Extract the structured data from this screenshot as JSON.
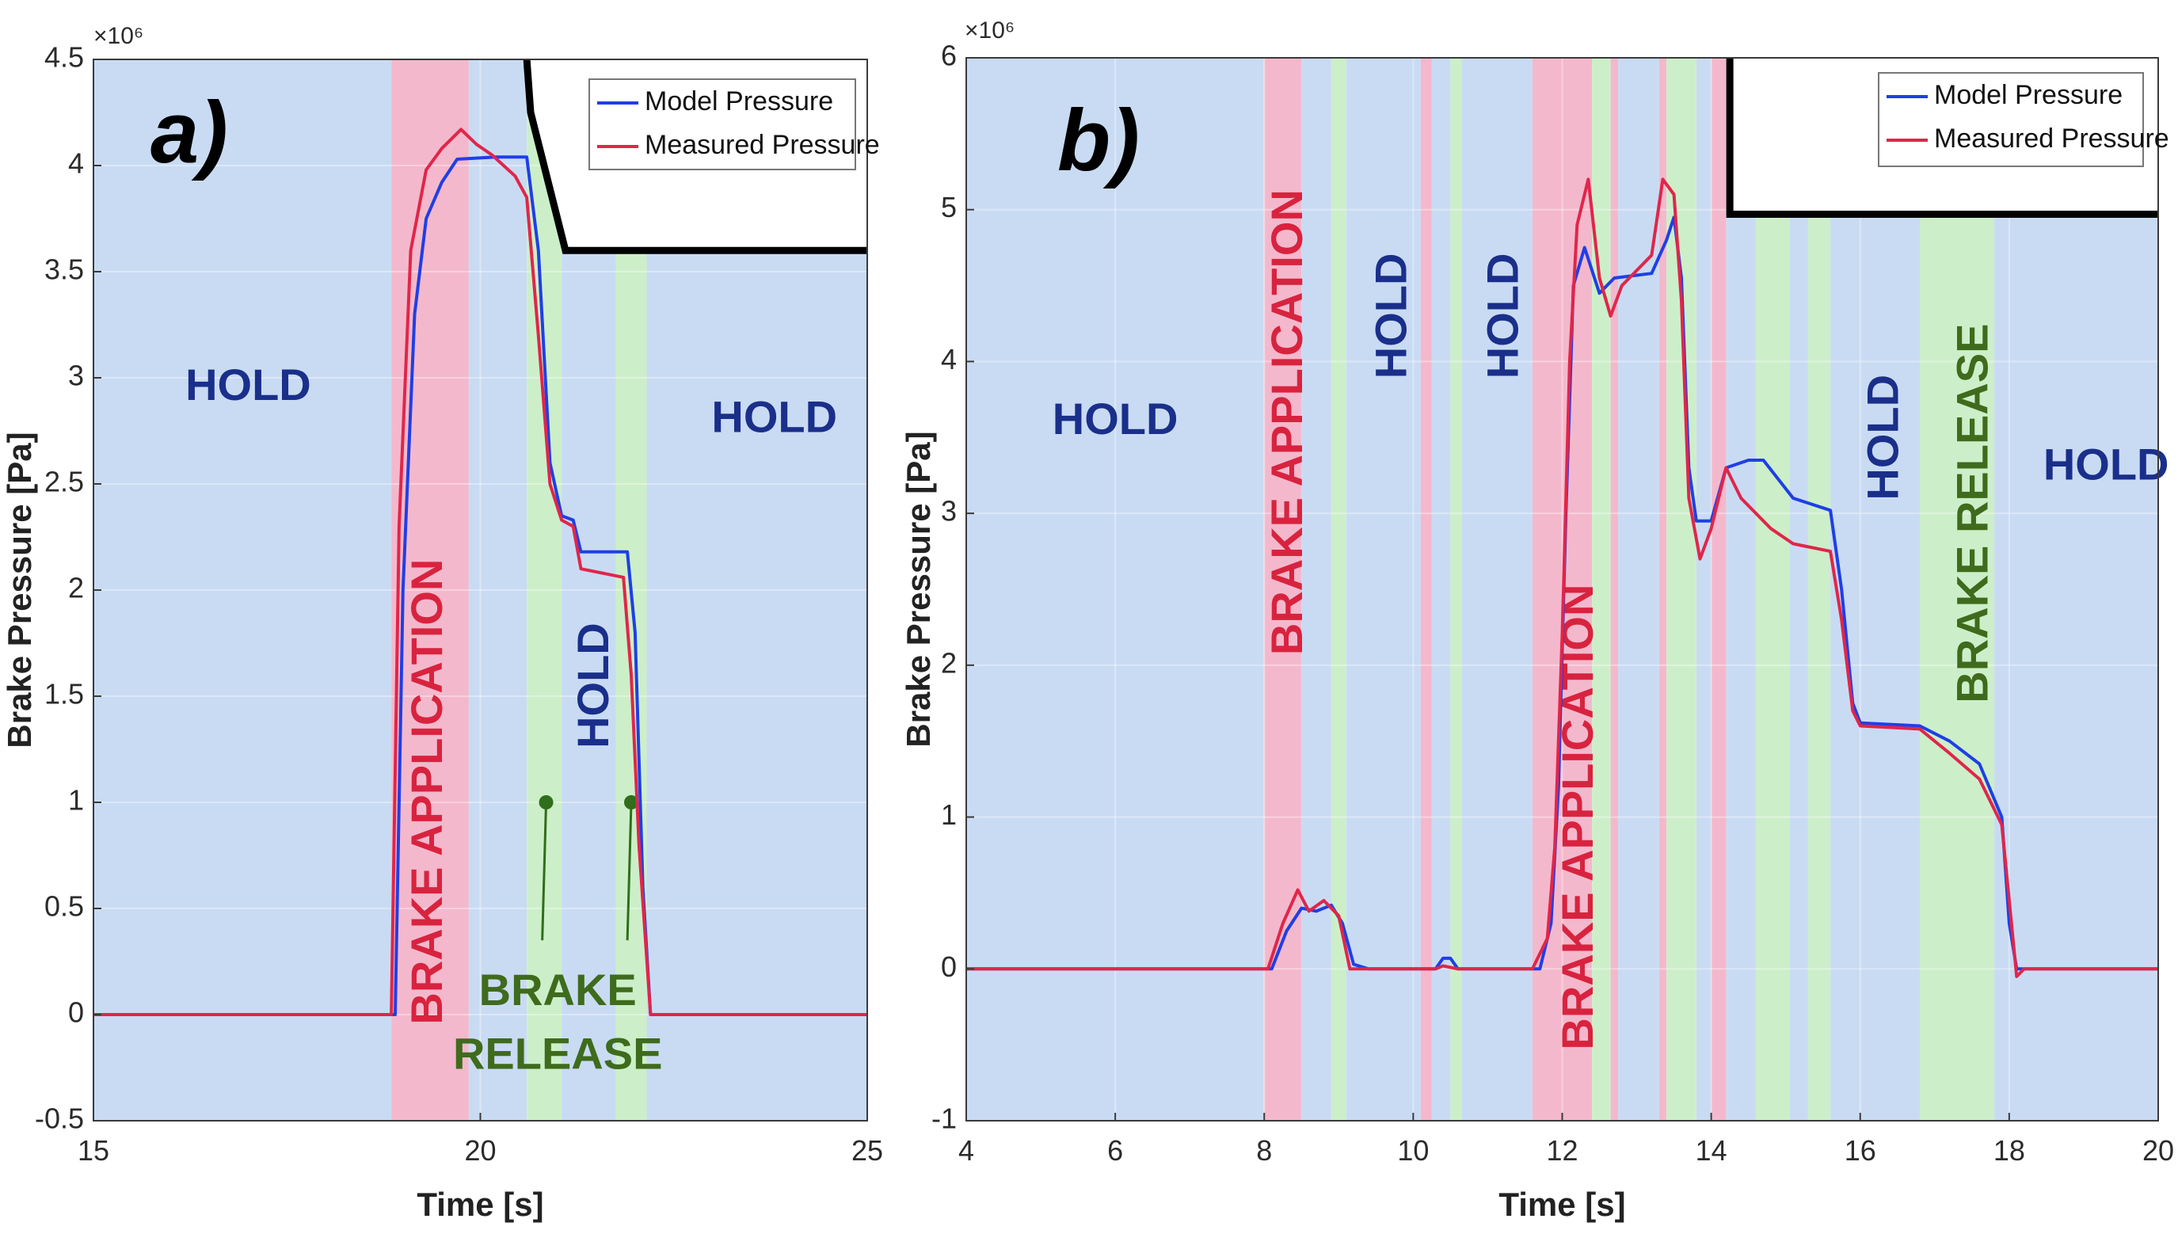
{
  "colors": {
    "hold": "#c9dbf3",
    "application": "#f4b8cc",
    "release": "#ccefc9",
    "model": "#1f3fe6",
    "measured": "#e0264a",
    "hold_text": "#1a2f8a",
    "application_text": "#d8233f",
    "release_text": "#3f6b1c"
  },
  "chart_data": [
    {
      "type": "line",
      "panel": "a)",
      "xlabel": "Time [s]",
      "ylabel": "Brake Pressure [Pa]",
      "exponent": "×10⁶",
      "xlim": [
        15,
        25
      ],
      "ylim": [
        -0.5,
        4.5
      ],
      "xticks": [
        15,
        20,
        25
      ],
      "yticks": [
        "-0.5",
        "0",
        "0.5",
        "1",
        "1.5",
        "2",
        "2.5",
        "3",
        "3.5",
        "4",
        "4.5"
      ],
      "legend": {
        "placement": "top-right",
        "entries": [
          "Model Pressure",
          "Measured Pressure"
        ]
      },
      "regions": [
        {
          "type": "hold",
          "x0": 15.0,
          "x1": 18.85
        },
        {
          "type": "application",
          "x0": 18.85,
          "x1": 19.85
        },
        {
          "type": "hold",
          "x0": 19.85,
          "x1": 20.6
        },
        {
          "type": "release",
          "x0": 20.6,
          "x1": 21.05
        },
        {
          "type": "hold",
          "x0": 21.05,
          "x1": 21.75
        },
        {
          "type": "release",
          "x0": 21.75,
          "x1": 22.15
        },
        {
          "type": "hold",
          "x0": 22.15,
          "x1": 25.0
        }
      ],
      "labels": [
        {
          "text": "HOLD",
          "kind": "hold",
          "x": 17.0,
          "y": 2.95,
          "rotate": false
        },
        {
          "text": "HOLD",
          "kind": "hold",
          "x": 23.8,
          "y": 2.8,
          "rotate": false
        },
        {
          "text": "BRAKE APPLICATION",
          "kind": "application",
          "x": 19.35,
          "y": 1.05,
          "rotate": true
        },
        {
          "text": "HOLD",
          "kind": "hold",
          "x": 21.5,
          "y": 1.55,
          "rotate": true
        },
        {
          "text": "BRAKE",
          "kind": "release",
          "x": 21.0,
          "y": 0.1,
          "rotate": false
        },
        {
          "text": "RELEASE",
          "kind": "release",
          "x": 21.0,
          "y": -0.2,
          "rotate": false
        }
      ],
      "pointers": [
        {
          "x": 20.85,
          "y": 1.0,
          "to_x": 20.8,
          "to_y": 0.35
        },
        {
          "x": 21.95,
          "y": 1.0,
          "to_x": 21.9,
          "to_y": 0.35
        }
      ],
      "command": [
        [
          20.6,
          4.5
        ],
        [
          20.65,
          4.25
        ],
        [
          21.1,
          3.6
        ],
        [
          25.0,
          3.6
        ]
      ],
      "series": [
        {
          "name": "Model Pressure",
          "points": [
            [
              15,
              0
            ],
            [
              18.9,
              0
            ],
            [
              19.0,
              2.0
            ],
            [
              19.15,
              3.3
            ],
            [
              19.3,
              3.75
            ],
            [
              19.5,
              3.92
            ],
            [
              19.7,
              4.03
            ],
            [
              20.2,
              4.04
            ],
            [
              20.6,
              4.04
            ],
            [
              20.75,
              3.6
            ],
            [
              20.9,
              2.6
            ],
            [
              21.05,
              2.35
            ],
            [
              21.2,
              2.33
            ],
            [
              21.3,
              2.18
            ],
            [
              21.9,
              2.18
            ],
            [
              22.0,
              1.8
            ],
            [
              22.1,
              0.6
            ],
            [
              22.2,
              0
            ],
            [
              25,
              0
            ]
          ]
        },
        {
          "name": "Measured Pressure",
          "points": [
            [
              15,
              0
            ],
            [
              18.85,
              0
            ],
            [
              18.95,
              2.3
            ],
            [
              19.1,
              3.6
            ],
            [
              19.3,
              3.98
            ],
            [
              19.5,
              4.08
            ],
            [
              19.75,
              4.17
            ],
            [
              19.95,
              4.1
            ],
            [
              20.15,
              4.05
            ],
            [
              20.45,
              3.95
            ],
            [
              20.6,
              3.85
            ],
            [
              20.75,
              3.2
            ],
            [
              20.9,
              2.5
            ],
            [
              21.05,
              2.33
            ],
            [
              21.2,
              2.3
            ],
            [
              21.3,
              2.1
            ],
            [
              21.85,
              2.06
            ],
            [
              21.95,
              1.6
            ],
            [
              22.05,
              0.8
            ],
            [
              22.2,
              0
            ],
            [
              25,
              0
            ]
          ]
        }
      ]
    },
    {
      "type": "line",
      "panel": "b)",
      "xlabel": "Time [s]",
      "ylabel": "Brake Pressure [Pa]",
      "exponent": "×10⁶",
      "xlim": [
        4,
        20
      ],
      "ylim": [
        -1,
        6
      ],
      "xticks": [
        4,
        6,
        8,
        10,
        12,
        14,
        16,
        18,
        20
      ],
      "yticks": [
        "-1",
        "0",
        "1",
        "2",
        "3",
        "4",
        "5",
        "6"
      ],
      "legend": {
        "placement": "top-right",
        "entries": [
          "Model Pressure",
          "Measured Pressure"
        ]
      },
      "regions": [
        {
          "type": "hold",
          "x0": 4.0,
          "x1": 8.0
        },
        {
          "type": "application",
          "x0": 8.0,
          "x1": 8.5
        },
        {
          "type": "hold",
          "x0": 8.5,
          "x1": 8.9
        },
        {
          "type": "release",
          "x0": 8.9,
          "x1": 9.1
        },
        {
          "type": "hold",
          "x0": 9.1,
          "x1": 10.1
        },
        {
          "type": "application",
          "x0": 10.1,
          "x1": 10.25
        },
        {
          "type": "hold",
          "x0": 10.25,
          "x1": 10.5
        },
        {
          "type": "release",
          "x0": 10.5,
          "x1": 10.65
        },
        {
          "type": "hold",
          "x0": 10.65,
          "x1": 11.6
        },
        {
          "type": "application",
          "x0": 11.6,
          "x1": 12.4
        },
        {
          "type": "release",
          "x0": 12.4,
          "x1": 12.65
        },
        {
          "type": "application",
          "x0": 12.65,
          "x1": 12.75
        },
        {
          "type": "hold",
          "x0": 12.75,
          "x1": 13.3
        },
        {
          "type": "application",
          "x0": 13.3,
          "x1": 13.4
        },
        {
          "type": "release",
          "x0": 13.4,
          "x1": 13.8
        },
        {
          "type": "hold",
          "x0": 13.8,
          "x1": 14.0
        },
        {
          "type": "application",
          "x0": 14.0,
          "x1": 14.2
        },
        {
          "type": "hold",
          "x0": 14.2,
          "x1": 14.6
        },
        {
          "type": "release",
          "x0": 14.6,
          "x1": 15.05
        },
        {
          "type": "hold",
          "x0": 15.05,
          "x1": 15.3
        },
        {
          "type": "release",
          "x0": 15.3,
          "x1": 15.6
        },
        {
          "type": "hold",
          "x0": 15.6,
          "x1": 16.8
        },
        {
          "type": "release",
          "x0": 16.8,
          "x1": 17.8
        },
        {
          "type": "hold",
          "x0": 17.8,
          "x1": 20.0
        }
      ],
      "labels": [
        {
          "text": "HOLD",
          "kind": "hold",
          "x": 6.0,
          "y": 3.6,
          "rotate": false
        },
        {
          "text": "BRAKE APPLICATION",
          "kind": "application",
          "x": 8.35,
          "y": 3.6,
          "rotate": true
        },
        {
          "text": "HOLD",
          "kind": "hold",
          "x": 9.75,
          "y": 4.3,
          "rotate": true
        },
        {
          "text": "HOLD",
          "kind": "hold",
          "x": 11.25,
          "y": 4.3,
          "rotate": true
        },
        {
          "text": "BRAKE APPLICATION",
          "kind": "application",
          "x": 12.25,
          "y": 1.0,
          "rotate": true
        },
        {
          "text": "HOLD",
          "kind": "hold",
          "x": 16.35,
          "y": 3.5,
          "rotate": true
        },
        {
          "text": "BRAKE RELEASE",
          "kind": "release",
          "x": 17.55,
          "y": 3.0,
          "rotate": true
        },
        {
          "text": "HOLD",
          "kind": "hold",
          "x": 19.3,
          "y": 3.3,
          "rotate": false
        }
      ],
      "pointers": [],
      "command": [
        [
          14.25,
          6.0
        ],
        [
          14.25,
          4.97
        ],
        [
          20.0,
          4.97
        ]
      ],
      "series": [
        {
          "name": "Model Pressure",
          "points": [
            [
              4,
              0
            ],
            [
              8.1,
              0
            ],
            [
              8.3,
              0.25
            ],
            [
              8.5,
              0.4
            ],
            [
              8.7,
              0.38
            ],
            [
              8.9,
              0.42
            ],
            [
              9.05,
              0.3
            ],
            [
              9.2,
              0.03
            ],
            [
              9.4,
              0
            ],
            [
              10.3,
              0
            ],
            [
              10.4,
              0.07
            ],
            [
              10.5,
              0.07
            ],
            [
              10.6,
              0
            ],
            [
              11.7,
              0
            ],
            [
              11.85,
              0.3
            ],
            [
              11.95,
              1.2
            ],
            [
              12.05,
              3.0
            ],
            [
              12.15,
              4.5
            ],
            [
              12.3,
              4.75
            ],
            [
              12.5,
              4.45
            ],
            [
              12.7,
              4.55
            ],
            [
              13.2,
              4.58
            ],
            [
              13.4,
              4.8
            ],
            [
              13.5,
              4.95
            ],
            [
              13.6,
              4.55
            ],
            [
              13.7,
              3.3
            ],
            [
              13.8,
              2.95
            ],
            [
              14.0,
              2.95
            ],
            [
              14.2,
              3.3
            ],
            [
              14.5,
              3.35
            ],
            [
              14.7,
              3.35
            ],
            [
              15.1,
              3.1
            ],
            [
              15.6,
              3.02
            ],
            [
              15.75,
              2.5
            ],
            [
              15.9,
              1.75
            ],
            [
              16.0,
              1.62
            ],
            [
              16.8,
              1.6
            ],
            [
              17.2,
              1.5
            ],
            [
              17.6,
              1.35
            ],
            [
              17.9,
              1.0
            ],
            [
              18.0,
              0.3
            ],
            [
              18.1,
              0
            ],
            [
              20,
              0
            ]
          ]
        },
        {
          "name": "Measured Pressure",
          "points": [
            [
              4,
              0
            ],
            [
              8.05,
              0
            ],
            [
              8.25,
              0.3
            ],
            [
              8.45,
              0.52
            ],
            [
              8.6,
              0.38
            ],
            [
              8.8,
              0.45
            ],
            [
              9.0,
              0.35
            ],
            [
              9.15,
              0
            ],
            [
              9.4,
              0
            ],
            [
              10.3,
              0
            ],
            [
              10.4,
              0.02
            ],
            [
              10.6,
              0
            ],
            [
              11.6,
              0
            ],
            [
              11.8,
              0.2
            ],
            [
              11.9,
              0.8
            ],
            [
              12.0,
              2.2
            ],
            [
              12.1,
              4.0
            ],
            [
              12.2,
              4.9
            ],
            [
              12.35,
              5.2
            ],
            [
              12.5,
              4.55
            ],
            [
              12.65,
              4.3
            ],
            [
              12.8,
              4.5
            ],
            [
              13.2,
              4.7
            ],
            [
              13.35,
              5.2
            ],
            [
              13.5,
              5.1
            ],
            [
              13.6,
              4.4
            ],
            [
              13.7,
              3.1
            ],
            [
              13.85,
              2.7
            ],
            [
              14.0,
              2.9
            ],
            [
              14.2,
              3.3
            ],
            [
              14.4,
              3.1
            ],
            [
              14.8,
              2.9
            ],
            [
              15.1,
              2.8
            ],
            [
              15.6,
              2.75
            ],
            [
              15.75,
              2.3
            ],
            [
              15.9,
              1.7
            ],
            [
              16.0,
              1.6
            ],
            [
              16.8,
              1.58
            ],
            [
              17.2,
              1.42
            ],
            [
              17.6,
              1.25
            ],
            [
              17.9,
              0.95
            ],
            [
              18.05,
              0.2
            ],
            [
              18.1,
              -0.05
            ],
            [
              18.2,
              0
            ],
            [
              20,
              0
            ]
          ]
        }
      ]
    }
  ]
}
